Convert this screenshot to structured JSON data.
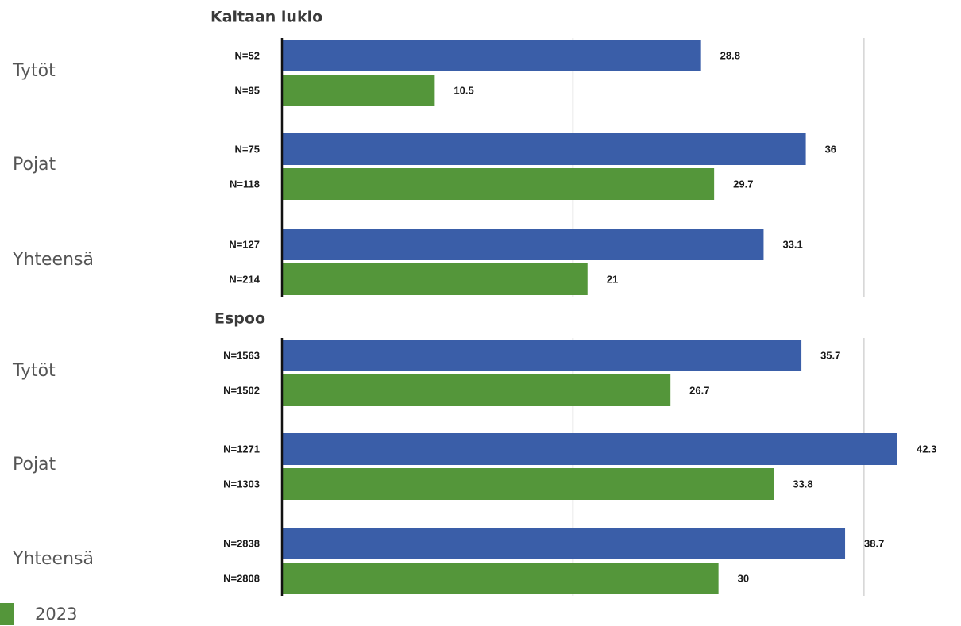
{
  "chart_data": {
    "type": "bar",
    "orientation": "horizontal",
    "xlim": [
      0,
      45
    ],
    "colors": {
      "earlier": "#3a5ea8",
      "2023": "#54963a",
      "axis": "#111111",
      "grid": "#d4d4d4"
    },
    "legend": [
      {
        "label": "2023",
        "color": "#54963a"
      }
    ],
    "panels": [
      {
        "title": "Kaitaan lukio",
        "groups": [
          {
            "label": "Tytöt",
            "bars": [
              {
                "n": "N=52",
                "value": 28.8,
                "series": "earlier"
              },
              {
                "n": "N=95",
                "value": 10.5,
                "series": "2023"
              }
            ]
          },
          {
            "label": "Pojat",
            "bars": [
              {
                "n": "N=75",
                "value": 36,
                "series": "earlier"
              },
              {
                "n": "N=118",
                "value": 29.7,
                "series": "2023"
              }
            ]
          },
          {
            "label": "Yhteensä",
            "bars": [
              {
                "n": "N=127",
                "value": 33.1,
                "series": "earlier"
              },
              {
                "n": "N=214",
                "value": 21,
                "series": "2023"
              }
            ]
          }
        ]
      },
      {
        "title": "Espoo",
        "groups": [
          {
            "label": "Tytöt",
            "bars": [
              {
                "n": "N=1563",
                "value": 35.7,
                "series": "earlier"
              },
              {
                "n": "N=1502",
                "value": 26.7,
                "series": "2023"
              }
            ]
          },
          {
            "label": "Pojat",
            "bars": [
              {
                "n": "N=1271",
                "value": 42.3,
                "series": "earlier"
              },
              {
                "n": "N=1303",
                "value": 33.8,
                "series": "2023"
              }
            ]
          },
          {
            "label": "Yhteensä",
            "bars": [
              {
                "n": "N=2838",
                "value": 38.7,
                "series": "earlier"
              },
              {
                "n": "N=2808",
                "value": 30,
                "series": "2023"
              }
            ]
          }
        ]
      }
    ]
  }
}
